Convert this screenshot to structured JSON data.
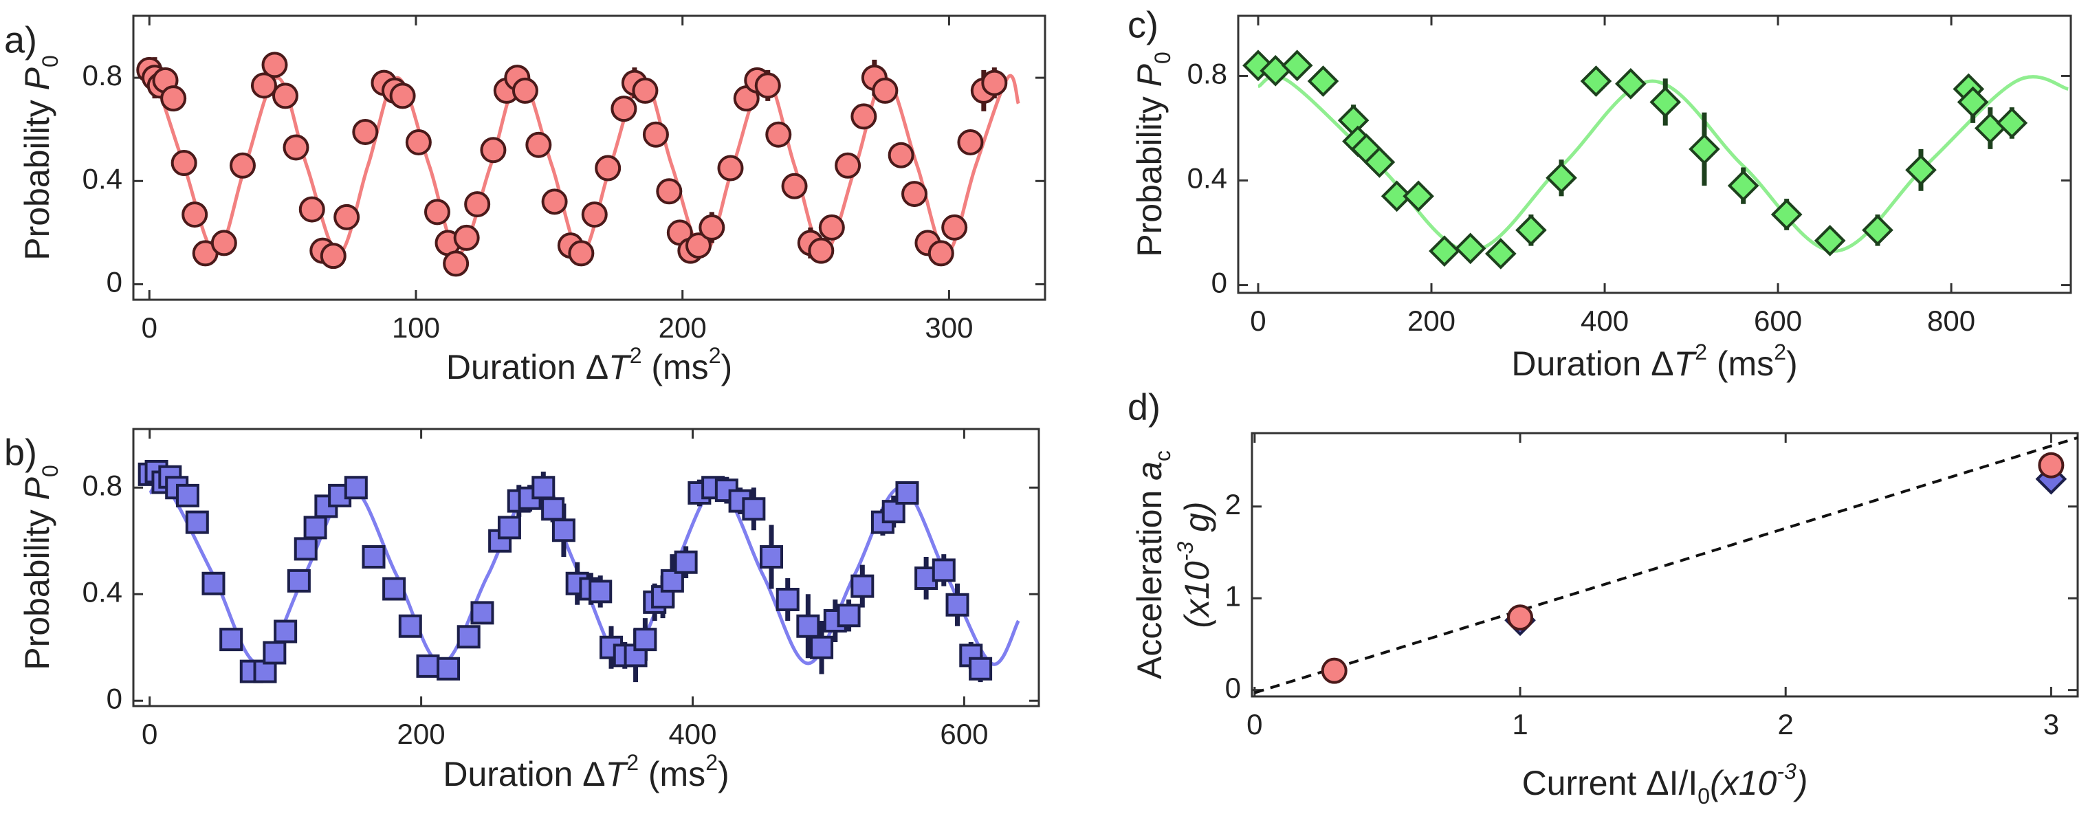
{
  "chart_data": [
    {
      "type": "scatter",
      "label": "a)",
      "xlabel": [
        "Duration Δ",
        "T",
        "2",
        " (ms",
        "2",
        ")"
      ],
      "ylabel": [
        [
          "Probability ",
          "P",
          "0"
        ]
      ],
      "xlim": [
        -6,
        336
      ],
      "ylim": [
        -0.06,
        1.04
      ],
      "xticks": [
        0,
        100,
        200,
        300
      ],
      "yticks": [
        0,
        0.4,
        0.8
      ],
      "series": [
        {
          "marker": "line",
          "color": "#f28080",
          "x": [
            0,
            2,
            13,
            25,
            36,
            48,
            59,
            71,
            82,
            93,
            105,
            116,
            128,
            139,
            151,
            162,
            173,
            185,
            196,
            208,
            219,
            231,
            242,
            253,
            265,
            276,
            288,
            299,
            310,
            322,
            326
          ],
          "values": [
            0.79,
            0.8,
            0.46,
            0.12,
            0.46,
            0.8,
            0.46,
            0.12,
            0.46,
            0.8,
            0.46,
            0.12,
            0.46,
            0.8,
            0.46,
            0.12,
            0.46,
            0.8,
            0.46,
            0.12,
            0.46,
            0.8,
            0.46,
            0.12,
            0.46,
            0.8,
            0.46,
            0.12,
            0.46,
            0.8,
            0.7
          ]
        },
        {
          "marker": "circle",
          "color": "#f58282",
          "edgecolor": "#4a1a1a",
          "x": [
            0,
            2,
            4,
            6,
            9,
            13,
            17,
            21,
            28,
            35,
            43,
            47,
            51,
            55,
            61,
            65,
            69,
            74,
            81,
            88,
            92,
            95,
            101,
            108,
            112,
            115,
            119,
            123,
            129,
            134,
            138,
            141,
            146,
            152,
            158,
            162,
            167,
            172,
            178,
            182,
            186,
            190,
            195,
            199,
            203,
            206,
            211,
            218,
            224,
            228,
            232,
            236,
            242,
            248,
            252,
            256,
            262,
            268,
            272,
            276,
            282,
            287,
            292,
            297,
            302,
            308,
            313,
            317
          ],
          "values": [
            0.83,
            0.8,
            0.77,
            0.79,
            0.72,
            0.47,
            0.27,
            0.12,
            0.16,
            0.46,
            0.77,
            0.85,
            0.73,
            0.53,
            0.29,
            0.13,
            0.11,
            0.26,
            0.59,
            0.78,
            0.75,
            0.73,
            0.55,
            0.28,
            0.16,
            0.08,
            0.18,
            0.31,
            0.52,
            0.75,
            0.8,
            0.75,
            0.54,
            0.32,
            0.15,
            0.12,
            0.27,
            0.45,
            0.68,
            0.78,
            0.75,
            0.58,
            0.36,
            0.2,
            0.13,
            0.15,
            0.22,
            0.45,
            0.72,
            0.79,
            0.77,
            0.58,
            0.38,
            0.16,
            0.13,
            0.22,
            0.46,
            0.65,
            0.8,
            0.75,
            0.5,
            0.35,
            0.16,
            0.12,
            0.22,
            0.55,
            0.75,
            0.78
          ],
          "errors": [
            0.03,
            0.08,
            0.03,
            0.03,
            0.03,
            0.03,
            0.03,
            0.03,
            0.03,
            0.03,
            0.03,
            0.03,
            0.03,
            0.03,
            0.03,
            0.03,
            0.03,
            0.03,
            0.03,
            0.03,
            0.03,
            0.03,
            0.03,
            0.03,
            0.03,
            0.03,
            0.03,
            0.03,
            0.03,
            0.03,
            0.03,
            0.03,
            0.03,
            0.03,
            0.03,
            0.03,
            0.03,
            0.03,
            0.03,
            0.06,
            0.04,
            0.03,
            0.03,
            0.03,
            0.03,
            0.03,
            0.06,
            0.03,
            0.03,
            0.03,
            0.06,
            0.03,
            0.03,
            0.06,
            0.03,
            0.03,
            0.03,
            0.03,
            0.07,
            0.03,
            0.03,
            0.03,
            0.03,
            0.03,
            0.03,
            0.03,
            0.08,
            0.06
          ]
        }
      ]
    },
    {
      "type": "scatter",
      "label": "b)",
      "xlabel": [
        "Duration Δ",
        "T",
        "2",
        " (ms",
        "2",
        ")"
      ],
      "ylabel": [
        [
          "Probability ",
          "P",
          "0"
        ]
      ],
      "xlim": [
        -12,
        655
      ],
      "ylim": [
        -0.02,
        1.02
      ],
      "xticks": [
        0,
        200,
        400,
        600
      ],
      "yticks": [
        0,
        0.4,
        0.8
      ],
      "series": [
        {
          "marker": "line",
          "color": "#7f7ff0",
          "x": [
            0,
            13,
            47,
            80,
            114,
            148,
            182,
            215,
            249,
            283,
            317,
            350,
            384,
            418,
            452,
            485,
            519,
            553,
            587,
            620,
            640
          ],
          "values": [
            0.78,
            0.8,
            0.47,
            0.14,
            0.47,
            0.8,
            0.47,
            0.14,
            0.47,
            0.8,
            0.47,
            0.14,
            0.47,
            0.8,
            0.47,
            0.14,
            0.47,
            0.8,
            0.47,
            0.14,
            0.3
          ]
        },
        {
          "marker": "square",
          "color": "#7b7be8",
          "edgecolor": "#1c1f4a",
          "x": [
            0,
            5,
            10,
            15,
            20,
            28,
            35,
            47,
            60,
            75,
            85,
            92,
            100,
            110,
            115,
            122,
            130,
            140,
            152,
            165,
            180,
            192,
            205,
            220,
            235,
            245,
            258,
            265,
            272,
            280,
            290,
            297,
            305,
            315,
            325,
            332,
            340,
            350,
            358,
            365,
            372,
            378,
            385,
            395,
            405,
            415,
            425,
            435,
            445,
            458,
            470,
            485,
            495,
            505,
            515,
            525,
            540,
            548,
            558,
            572,
            585,
            595,
            605,
            612
          ],
          "values": [
            0.85,
            0.86,
            0.82,
            0.84,
            0.8,
            0.77,
            0.67,
            0.44,
            0.23,
            0.11,
            0.11,
            0.18,
            0.26,
            0.45,
            0.57,
            0.65,
            0.73,
            0.77,
            0.8,
            0.54,
            0.42,
            0.28,
            0.13,
            0.12,
            0.24,
            0.33,
            0.6,
            0.65,
            0.75,
            0.76,
            0.8,
            0.72,
            0.64,
            0.44,
            0.42,
            0.41,
            0.2,
            0.17,
            0.17,
            0.23,
            0.37,
            0.39,
            0.45,
            0.52,
            0.78,
            0.8,
            0.79,
            0.75,
            0.72,
            0.54,
            0.38,
            0.28,
            0.2,
            0.3,
            0.32,
            0.43,
            0.67,
            0.71,
            0.78,
            0.46,
            0.49,
            0.36,
            0.17,
            0.12
          ],
          "errors": [
            0.03,
            0.03,
            0.03,
            0.03,
            0.03,
            0.03,
            0.03,
            0.03,
            0.03,
            0.04,
            0.04,
            0.03,
            0.03,
            0.03,
            0.04,
            0.03,
            0.03,
            0.03,
            0.04,
            0.04,
            0.03,
            0.04,
            0.03,
            0.03,
            0.03,
            0.04,
            0.04,
            0.04,
            0.06,
            0.05,
            0.06,
            0.05,
            0.1,
            0.08,
            0.06,
            0.06,
            0.08,
            0.05,
            0.1,
            0.08,
            0.07,
            0.08,
            0.1,
            0.06,
            0.05,
            0.04,
            0.05,
            0.05,
            0.08,
            0.12,
            0.08,
            0.12,
            0.1,
            0.08,
            0.06,
            0.08,
            0.05,
            0.06,
            0.04,
            0.08,
            0.06,
            0.08,
            0.05,
            0.05
          ]
        }
      ]
    },
    {
      "type": "scatter",
      "label": "c)",
      "xlabel": [
        "Duration Δ",
        "T",
        "2",
        " (ms",
        "2",
        ")"
      ],
      "ylabel": [
        [
          "Probability ",
          "P",
          "0"
        ]
      ],
      "xlim": [
        -23,
        938
      ],
      "ylim": [
        -0.03,
        1.03
      ],
      "xticks": [
        0,
        200,
        400,
        600,
        800
      ],
      "yticks": [
        0,
        0.4,
        0.8
      ],
      "series": [
        {
          "marker": "line",
          "color": "#90ee90",
          "x": [
            0,
            35,
            140,
            245,
            350,
            455,
            560,
            665,
            770,
            875,
            935
          ],
          "values": [
            0.76,
            0.78,
            0.455,
            0.13,
            0.455,
            0.78,
            0.455,
            0.13,
            0.455,
            0.78,
            0.75
          ]
        },
        {
          "marker": "diamond",
          "color": "#72ee72",
          "edgecolor": "#1d401d",
          "x": [
            0,
            20,
            45,
            75,
            110,
            115,
            125,
            140,
            160,
            185,
            215,
            245,
            280,
            315,
            350,
            390,
            430,
            470,
            515,
            560,
            610,
            660,
            715,
            765,
            820,
            825,
            845,
            870
          ],
          "values": [
            0.84,
            0.82,
            0.84,
            0.78,
            0.63,
            0.55,
            0.52,
            0.47,
            0.34,
            0.34,
            0.13,
            0.14,
            0.12,
            0.21,
            0.41,
            0.78,
            0.77,
            0.7,
            0.52,
            0.38,
            0.27,
            0.17,
            0.21,
            0.44,
            0.75,
            0.7,
            0.6,
            0.62
          ],
          "errors": [
            0.03,
            0.03,
            0.04,
            0.03,
            0.06,
            0.05,
            0.04,
            0.05,
            0.04,
            0.03,
            0.03,
            0.03,
            0.04,
            0.06,
            0.07,
            0.04,
            0.04,
            0.09,
            0.14,
            0.07,
            0.06,
            0.04,
            0.06,
            0.08,
            0.05,
            0.08,
            0.08,
            0.06
          ]
        }
      ]
    },
    {
      "type": "scatter",
      "label": "d)",
      "xlabel": [
        "Current ΔI/I",
        "0",
        "(x10",
        "-3",
        ")"
      ],
      "ylabel": [
        [
          "Acceleration ",
          "a",
          "c"
        ],
        [
          "(x10",
          "-3",
          " g)"
        ]
      ],
      "xlim": [
        -0.01,
        3.1
      ],
      "ylim": [
        -0.07,
        2.8
      ],
      "xticks": [
        0,
        1,
        2,
        3
      ],
      "yticks": [
        0,
        1,
        2
      ],
      "series": [
        {
          "marker": "line",
          "color": "#111111",
          "dash": true,
          "x": [
            0,
            3.1
          ],
          "values": [
            -0.03,
            2.75
          ]
        },
        {
          "marker": "diamond",
          "color": "#6f6fe0",
          "edgecolor": "#1c1f4a",
          "x": [
            1,
            3
          ],
          "values": [
            0.76,
            2.3
          ]
        },
        {
          "marker": "circle",
          "color": "#f58282",
          "edgecolor": "#4a1a1a",
          "x": [
            0.3,
            1,
            3
          ],
          "values": [
            0.21,
            0.79,
            2.45
          ]
        }
      ]
    }
  ]
}
